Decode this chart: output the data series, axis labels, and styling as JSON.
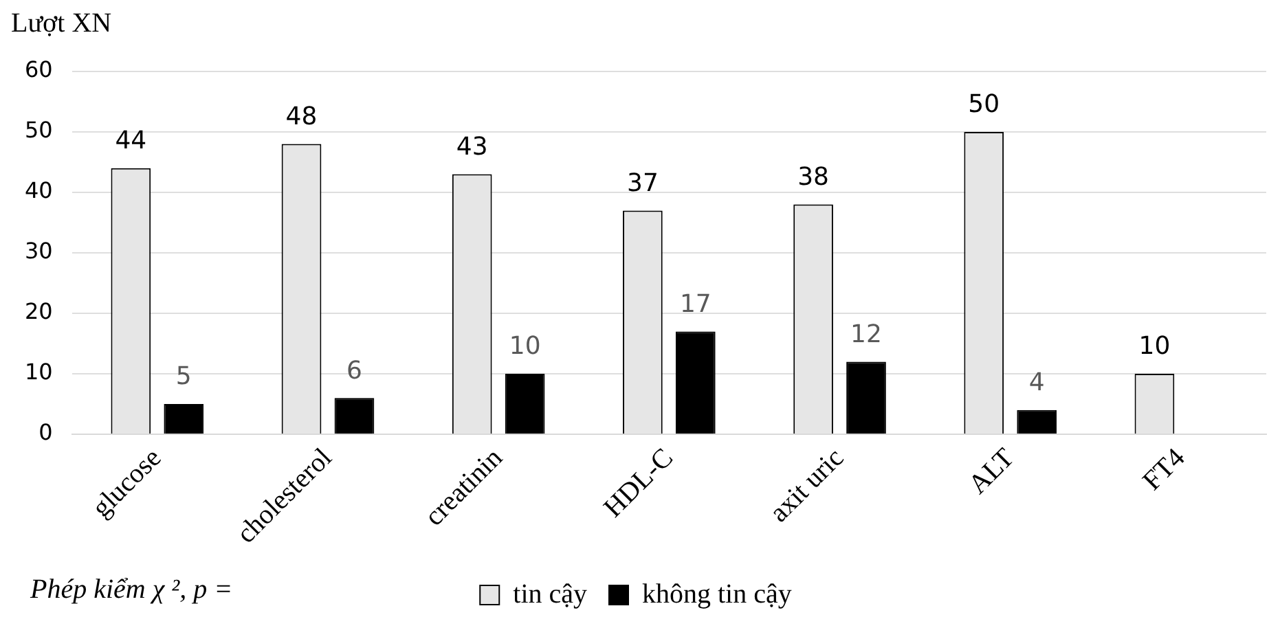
{
  "chart_data": {
    "type": "bar",
    "ylabel": "Lượt XN",
    "categories": [
      "glucose",
      "cholesterol",
      "creatinin",
      "HDL-C",
      "axit uric",
      "ALT",
      "FT4"
    ],
    "series": [
      {
        "name": "tin cậy",
        "color": "#e6e6e6",
        "values": [
          44,
          48,
          43,
          37,
          38,
          50,
          10
        ]
      },
      {
        "name": "không tin cậy",
        "color": "#000000",
        "values": [
          5,
          6,
          10,
          17,
          12,
          4,
          null
        ]
      }
    ],
    "ylim": [
      0,
      60
    ],
    "yticks": [
      0,
      10,
      20,
      30,
      40,
      50,
      60
    ],
    "grid": "y",
    "legend": "bottom",
    "data_labels": true,
    "annotations": [
      "Phép kiểm χ ², p ="
    ]
  }
}
